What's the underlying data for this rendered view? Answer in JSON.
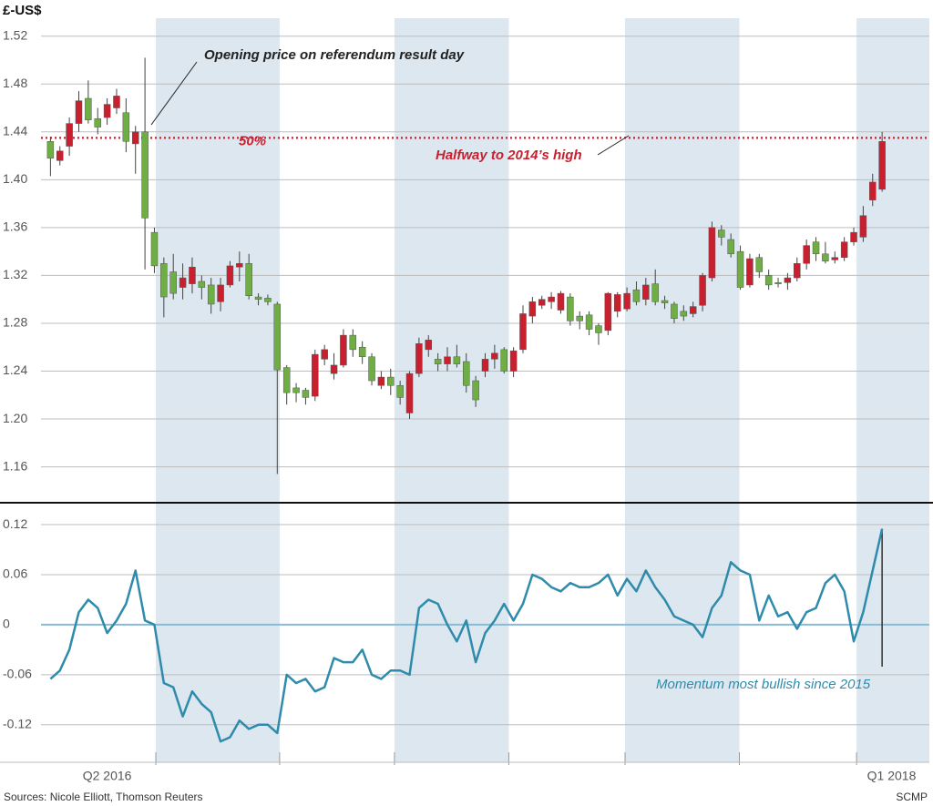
{
  "chart_data": [
    {
      "type": "candlestick",
      "title": "£-US$",
      "xlim": [
        -1,
        93
      ],
      "ylim": [
        1.13,
        1.535
      ],
      "yticks": [
        1.52,
        1.48,
        1.44,
        {
          "value": 1.4,
          "label": "1.40"
        },
        1.36,
        1.32,
        1.28,
        1.24,
        {
          "value": 1.2,
          "label": "1.20"
        },
        1.16
      ],
      "up_color": "#c8202f",
      "down_color": "#6fae45",
      "grid": true,
      "open": [
        1.432,
        1.416,
        1.428,
        1.447,
        1.468,
        1.451,
        1.452,
        1.46,
        1.456,
        1.43,
        1.44,
        1.356,
        1.33,
        1.323,
        1.31,
        1.313,
        1.315,
        1.312,
        1.298,
        1.312,
        1.327,
        1.33,
        1.302,
        1.301,
        1.296,
        1.243,
        1.226,
        1.224,
        1.219,
        1.25,
        1.238,
        1.245,
        1.27,
        1.26,
        1.252,
        1.228,
        1.235,
        1.228,
        1.205,
        1.238,
        1.258,
        1.25,
        1.246,
        1.252,
        1.248,
        1.232,
        1.24,
        1.25,
        1.258,
        1.24,
        1.258,
        1.286,
        1.295,
        1.298,
        1.291,
        1.302,
        1.286,
        1.287,
        1.278,
        1.274,
        1.29,
        1.292,
        1.308,
        1.3,
        1.313,
        1.299,
        1.296,
        1.29,
        1.288,
        1.295,
        1.318,
        1.358,
        1.35,
        1.34,
        1.312,
        1.335,
        1.32,
        1.314,
        1.314,
        1.318,
        1.33,
        1.348,
        1.338,
        1.333,
        1.335,
        1.348,
        1.352,
        1.383,
        1.392
      ],
      "high": [
        1.436,
        1.428,
        1.452,
        1.474,
        1.483,
        1.46,
        1.468,
        1.476,
        1.468,
        1.445,
        1.502,
        1.36,
        1.335,
        1.338,
        1.33,
        1.335,
        1.32,
        1.318,
        1.318,
        1.332,
        1.34,
        1.338,
        1.305,
        1.304,
        1.298,
        1.245,
        1.23,
        1.226,
        1.258,
        1.262,
        1.255,
        1.275,
        1.275,
        1.265,
        1.255,
        1.24,
        1.242,
        1.232,
        1.24,
        1.268,
        1.27,
        1.255,
        1.26,
        1.262,
        1.255,
        1.236,
        1.255,
        1.262,
        1.26,
        1.26,
        1.295,
        1.302,
        1.303,
        1.306,
        1.307,
        1.305,
        1.29,
        1.29,
        1.28,
        1.306,
        1.306,
        1.31,
        1.315,
        1.318,
        1.325,
        1.303,
        1.298,
        1.295,
        1.298,
        1.322,
        1.365,
        1.362,
        1.355,
        1.345,
        1.338,
        1.338,
        1.325,
        1.318,
        1.322,
        1.335,
        1.35,
        1.352,
        1.348,
        1.34,
        1.352,
        1.36,
        1.378,
        1.405,
        1.44
      ],
      "low": [
        1.403,
        1.412,
        1.42,
        1.44,
        1.447,
        1.438,
        1.446,
        1.455,
        1.423,
        1.405,
        1.325,
        1.322,
        1.285,
        1.3,
        1.3,
        1.305,
        1.3,
        1.288,
        1.29,
        1.31,
        1.315,
        1.3,
        1.295,
        1.295,
        1.154,
        1.212,
        1.214,
        1.212,
        1.215,
        1.245,
        1.233,
        1.243,
        1.252,
        1.246,
        1.228,
        1.225,
        1.22,
        1.212,
        1.2,
        1.235,
        1.252,
        1.24,
        1.24,
        1.243,
        1.222,
        1.21,
        1.235,
        1.242,
        1.238,
        1.235,
        1.255,
        1.28,
        1.292,
        1.292,
        1.288,
        1.278,
        1.275,
        1.27,
        1.262,
        1.27,
        1.285,
        1.29,
        1.295,
        1.295,
        1.295,
        1.292,
        1.28,
        1.282,
        1.285,
        1.29,
        1.315,
        1.345,
        1.335,
        1.308,
        1.31,
        1.318,
        1.308,
        1.31,
        1.308,
        1.315,
        1.325,
        1.332,
        1.33,
        1.33,
        1.332,
        1.345,
        1.348,
        1.378,
        1.39
      ],
      "close": [
        1.418,
        1.424,
        1.447,
        1.466,
        1.45,
        1.444,
        1.463,
        1.47,
        1.432,
        1.44,
        1.368,
        1.328,
        1.302,
        1.305,
        1.318,
        1.327,
        1.31,
        1.296,
        1.312,
        1.328,
        1.33,
        1.303,
        1.3,
        1.298,
        1.241,
        1.222,
        1.222,
        1.218,
        1.254,
        1.258,
        1.245,
        1.27,
        1.258,
        1.252,
        1.232,
        1.235,
        1.228,
        1.218,
        1.238,
        1.263,
        1.266,
        1.246,
        1.252,
        1.246,
        1.228,
        1.216,
        1.25,
        1.255,
        1.24,
        1.257,
        1.288,
        1.298,
        1.3,
        1.302,
        1.305,
        1.282,
        1.282,
        1.275,
        1.272,
        1.305,
        1.304,
        1.305,
        1.298,
        1.312,
        1.298,
        1.297,
        1.284,
        1.286,
        1.294,
        1.32,
        1.36,
        1.352,
        1.338,
        1.31,
        1.334,
        1.323,
        1.312,
        1.313,
        1.318,
        1.33,
        1.345,
        1.338,
        1.332,
        1.335,
        1.348,
        1.356,
        1.37,
        1.398,
        1.432
      ],
      "reference_line": {
        "value": 1.435,
        "label": "50%"
      },
      "annotations": [
        "Opening price on referendum result day",
        "Halfway to 2014’s high"
      ]
    },
    {
      "type": "line",
      "color": "#2e8bab",
      "zero_color": "#86bcd6",
      "xlim": [
        -1,
        93
      ],
      "ylim": [
        -0.165,
        0.143
      ],
      "yticks": [
        0.12,
        0.06,
        0,
        -0.06,
        -0.12
      ],
      "xticks": [
        {
          "value": 6,
          "label": "Q2 2016"
        },
        {
          "value": 89,
          "label": "Q1 2018"
        }
      ],
      "values": [
        -0.065,
        -0.055,
        -0.03,
        0.015,
        0.03,
        0.02,
        -0.01,
        0.005,
        0.025,
        0.065,
        0.005,
        0,
        -0.07,
        -0.075,
        -0.11,
        -0.08,
        -0.095,
        -0.105,
        -0.14,
        -0.135,
        -0.115,
        -0.125,
        -0.12,
        -0.12,
        -0.13,
        -0.06,
        -0.07,
        -0.065,
        -0.08,
        -0.075,
        -0.04,
        -0.045,
        -0.045,
        -0.03,
        -0.06,
        -0.065,
        -0.055,
        -0.055,
        -0.06,
        0.02,
        0.03,
        0.025,
        0,
        -0.02,
        0.005,
        -0.045,
        -0.01,
        0.005,
        0.025,
        0.005,
        0.025,
        0.06,
        0.055,
        0.045,
        0.04,
        0.05,
        0.045,
        0.045,
        0.05,
        0.06,
        0.035,
        0.055,
        0.04,
        0.065,
        0.045,
        0.03,
        0.01,
        0.005,
        0,
        -0.015,
        0.02,
        0.035,
        0.075,
        0.065,
        0.06,
        0.005,
        0.035,
        0.01,
        0.015,
        -0.005,
        0.015,
        0.02,
        0.05,
        0.06,
        0.04,
        -0.02,
        0.015,
        0.065,
        0.115
      ],
      "annotations": [
        "Momentum most bullish since 2015"
      ]
    }
  ],
  "footer": {
    "source": "Sources: Nicole Elliott, Thomson Reuters",
    "credit": "SCMP"
  }
}
